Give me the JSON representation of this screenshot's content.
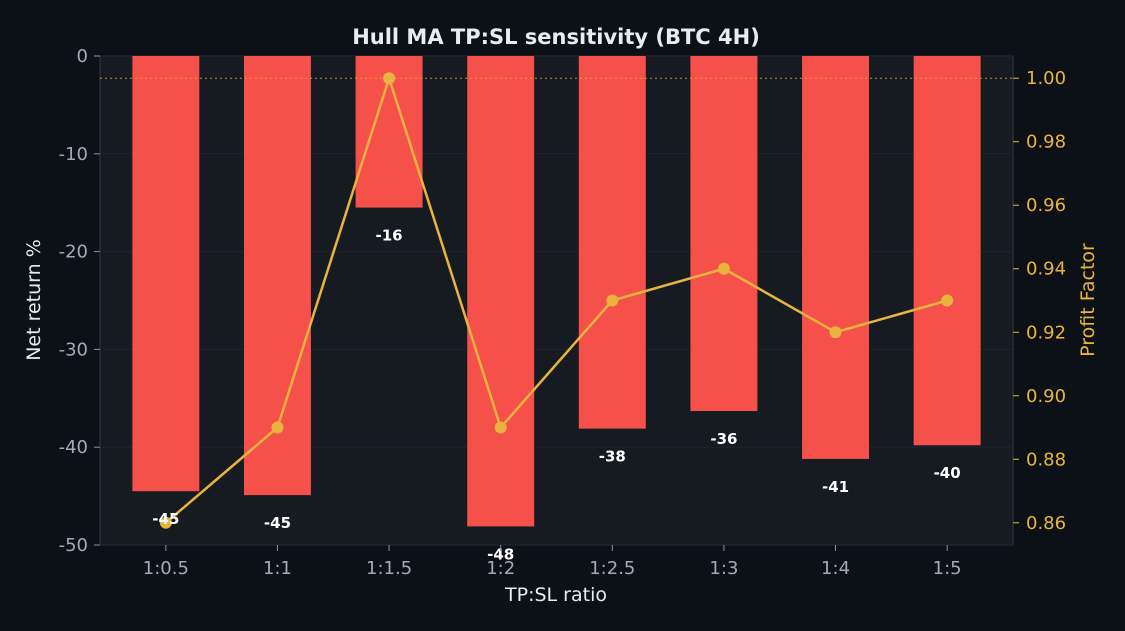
{
  "chart_data": {
    "type": "bar",
    "title": "Hull MA TP:SL sensitivity (BTC 4H)",
    "xlabel": "TP:SL ratio",
    "ylabel": "Net return %",
    "y2label": "Profit Factor",
    "categories": [
      "1:0.5",
      "1:1",
      "1:1.5",
      "1:2",
      "1:2.5",
      "1:3",
      "1:4",
      "1:5"
    ],
    "series": [
      {
        "type": "bar",
        "axis": "left",
        "values": [
          -44.5,
          -44.9,
          -15.5,
          -48.1,
          -38.1,
          -36.3,
          -41.2,
          -39.8
        ],
        "labels": [
          "-45",
          "-45",
          "-16",
          "-48",
          "-38",
          "-36",
          "-41",
          "-40"
        ],
        "color": "#f5504a"
      },
      {
        "type": "line",
        "axis": "right",
        "values": [
          0.86,
          0.89,
          1.0,
          0.89,
          0.93,
          0.94,
          0.92,
          0.93
        ],
        "color": "#e9b43d"
      }
    ],
    "ylim": [
      -50,
      0
    ],
    "y2lim": [
      0.853,
      1.007
    ],
    "yticks": [
      "0",
      "-10",
      "-20",
      "-30",
      "-40",
      "-50"
    ],
    "y2ticks": [
      "1.00",
      "0.98",
      "0.96",
      "0.94",
      "0.92",
      "0.90",
      "0.88",
      "0.86"
    ],
    "reference_line": {
      "axis": "right",
      "value": 1.0,
      "style": "dotted",
      "color": "#e9b43d"
    },
    "grid": true,
    "legend": "none"
  },
  "colors": {
    "background": "#0c1118",
    "plot_background": "#161b22",
    "bar": "#f5504a",
    "line": "#e9b43d",
    "left_axis_text": "#c9d1d9",
    "right_axis_text": "#e9b43d"
  }
}
